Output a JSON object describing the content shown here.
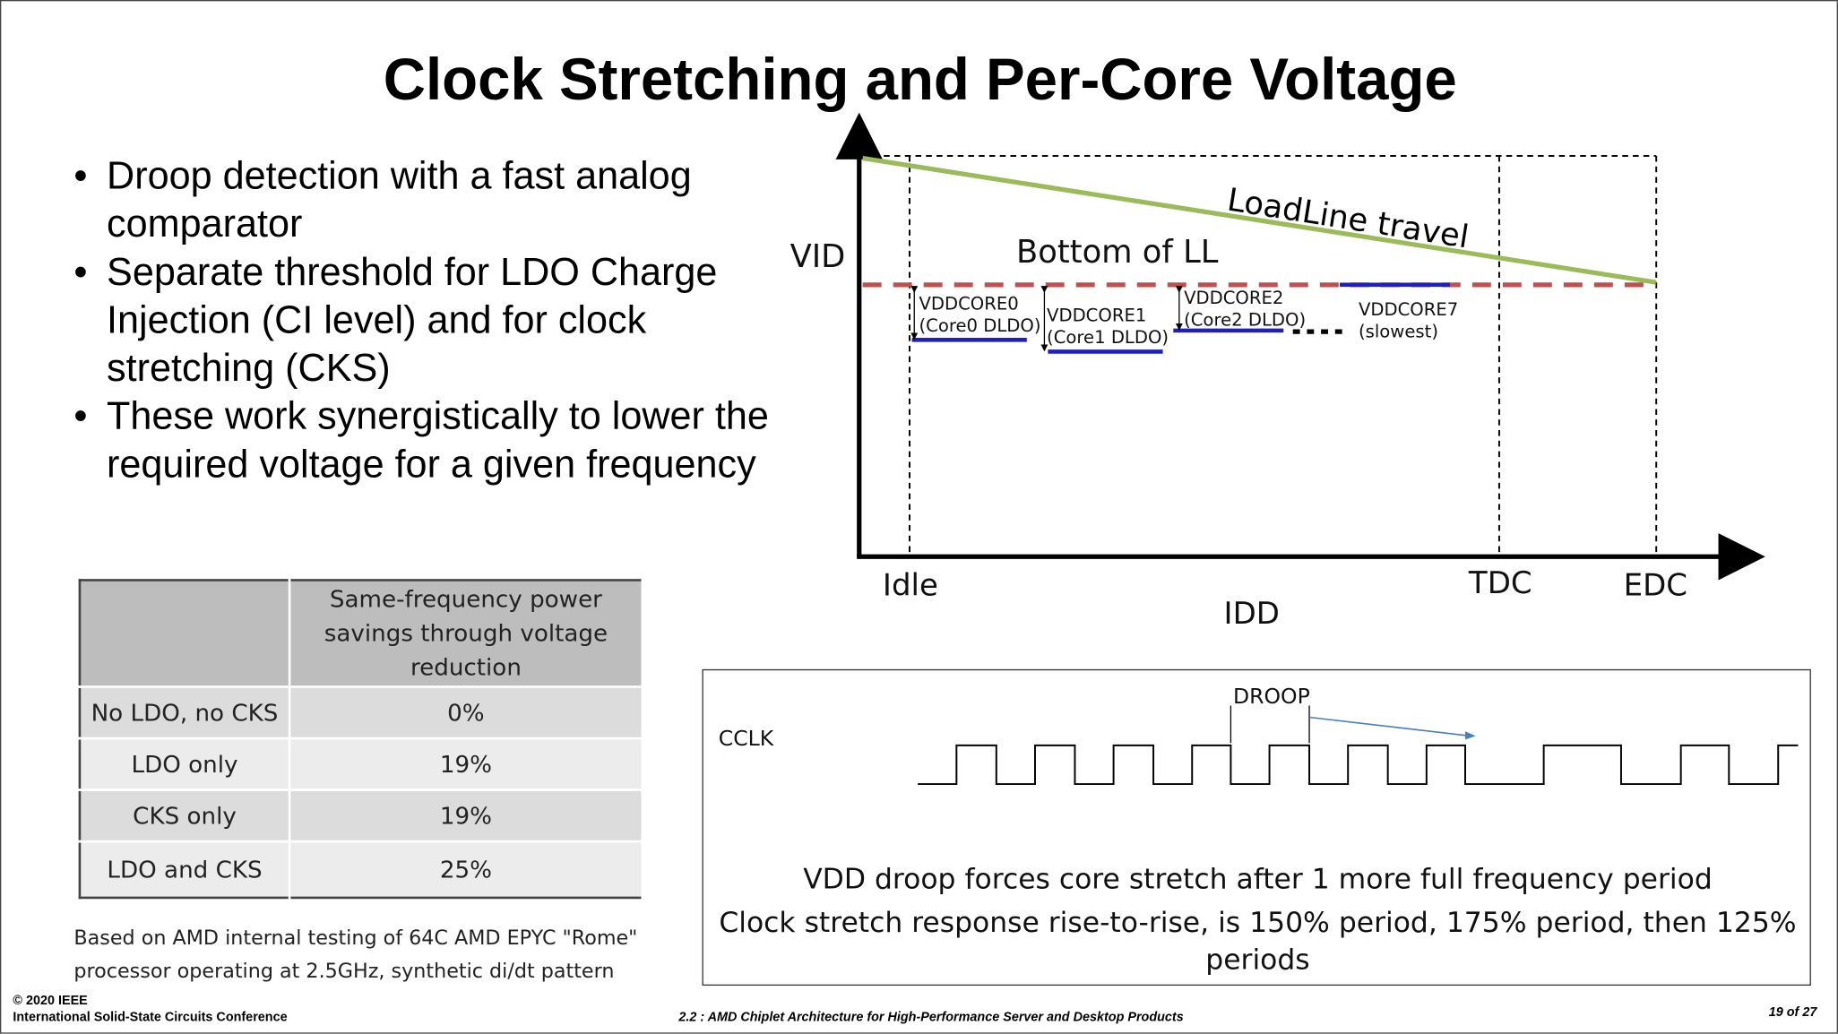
{
  "title": "Clock Stretching and Per-Core Voltage",
  "bullets": [
    "Droop detection with a fast analog comparator",
    "Separate threshold for LDO Charge Injection (CI level) and for clock stretching (CKS)",
    "These work synergistically to lower the required voltage for a given frequency"
  ],
  "table": {
    "header": [
      "",
      "Same-frequency power savings through voltage reduction"
    ],
    "rows": [
      [
        "No LDO, no CKS",
        "0%"
      ],
      [
        "LDO only",
        "19%"
      ],
      [
        "CKS only",
        "19%"
      ],
      [
        "LDO and CKS",
        "25%"
      ]
    ]
  },
  "note": [
    "Based on AMD internal testing of 64C AMD EPYC \"Rome\"",
    "processor operating at 2.5GHz, synthetic di/dt pattern"
  ],
  "diagram": {
    "vid": "VID",
    "idd": "IDD",
    "idle": "Idle",
    "tdc": "TDC",
    "edc": "EDC",
    "loadline": "LoadLine travel",
    "bottom": "Bottom of LL",
    "cores": [
      [
        "VDDCORE0",
        "(Core0 DLDO)"
      ],
      [
        "VDDCORE1",
        "(Core1 DLDO)"
      ],
      [
        "VDDCORE2",
        "(Core2 DLDO)"
      ],
      [
        "VDDCORE7",
        "(slowest)"
      ]
    ],
    "colors": {
      "loadline": "#9bbb59",
      "bottom": "#c0504d",
      "core": "#1f1fbf"
    }
  },
  "clock": {
    "cclk": "CCLK",
    "droop": "DROOP",
    "line1": "VDD droop forces core stretch after 1 more full frequency period",
    "line2": "Clock stretch response rise-to-rise, is 150% period, 175% period, then 125%",
    "line3": "periods"
  },
  "footer": {
    "copyright": "© 2020 IEEE",
    "conference": "International Solid-State Circuits Conference",
    "talk": "2.2 : AMD Chiplet Architecture for High-Performance Server and Desktop Products",
    "page": "19 of 27"
  }
}
